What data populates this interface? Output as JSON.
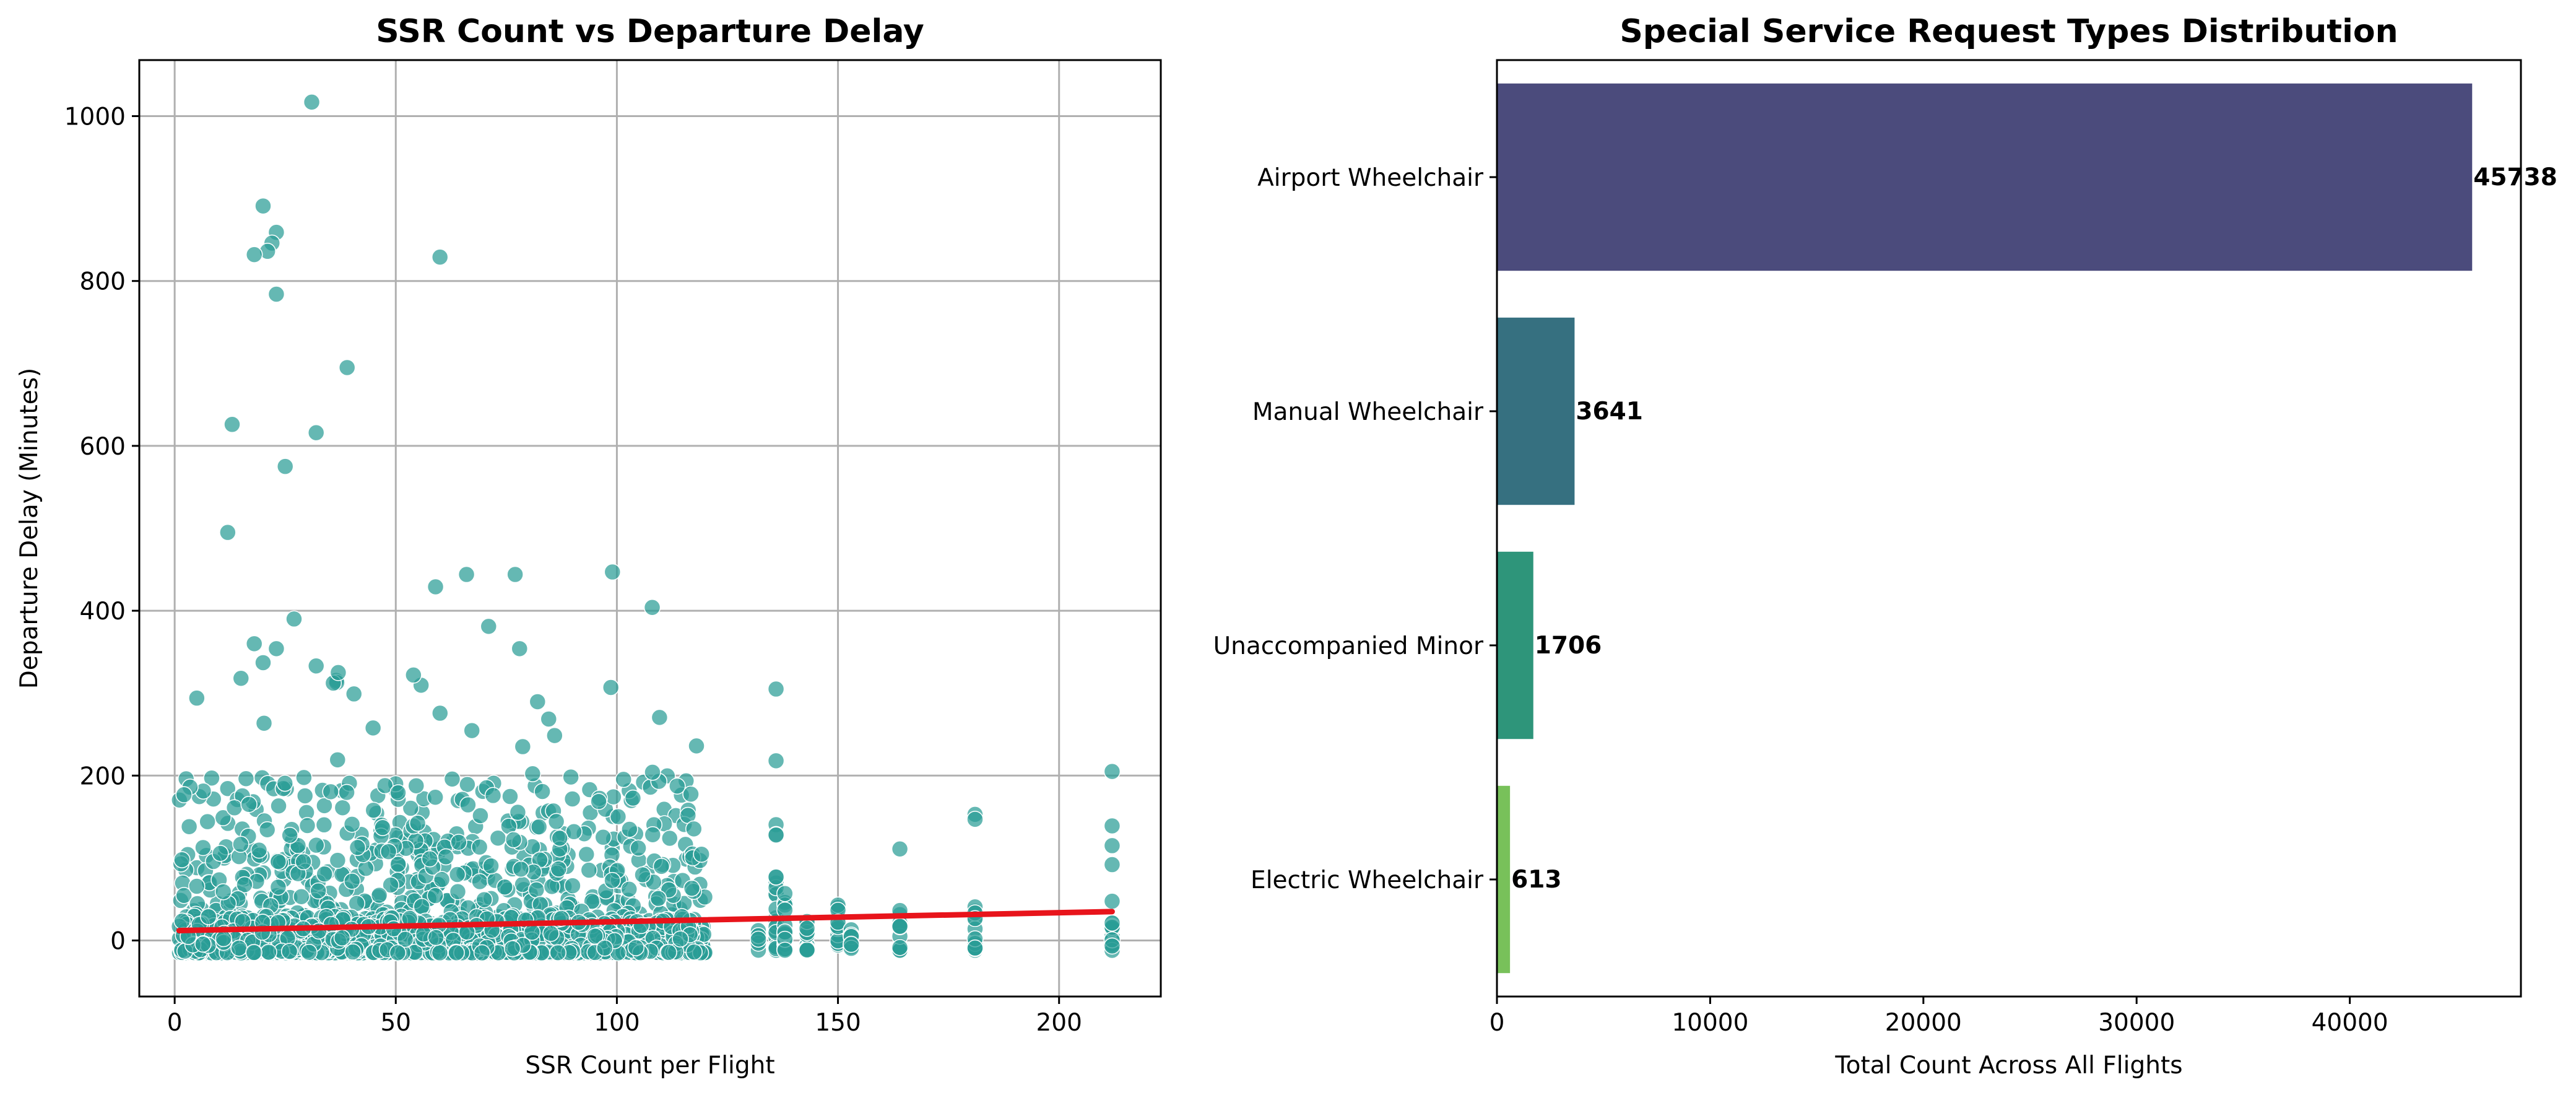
{
  "chart_data": [
    {
      "type": "scatter",
      "title": "SSR Count vs Departure Delay",
      "xlabel": "SSR Count per Flight",
      "ylabel": "Departure Delay (Minutes)",
      "xlim": [
        -8,
        223
      ],
      "ylim": [
        -68,
        1068
      ],
      "xticks": [
        0,
        50,
        100,
        150,
        200
      ],
      "yticks": [
        0,
        200,
        400,
        600,
        800,
        1000
      ],
      "grid": true,
      "point_color": "#2a9d96",
      "point_edge_color": "#ffffff",
      "trend_color": "#e8141b",
      "trend_line": {
        "x": [
          1,
          212
        ],
        "y": [
          12,
          35
        ]
      },
      "outliers": [
        {
          "x": 31,
          "y": 1017
        },
        {
          "x": 20,
          "y": 891
        },
        {
          "x": 23,
          "y": 859
        },
        {
          "x": 22,
          "y": 846
        },
        {
          "x": 21,
          "y": 836
        },
        {
          "x": 18,
          "y": 832
        },
        {
          "x": 60,
          "y": 829
        },
        {
          "x": 23,
          "y": 784
        },
        {
          "x": 39,
          "y": 695
        },
        {
          "x": 13,
          "y": 626
        },
        {
          "x": 32,
          "y": 616
        },
        {
          "x": 25,
          "y": 575
        },
        {
          "x": 12,
          "y": 495
        },
        {
          "x": 99,
          "y": 447
        },
        {
          "x": 66,
          "y": 444
        },
        {
          "x": 77,
          "y": 444
        },
        {
          "x": 59,
          "y": 429
        },
        {
          "x": 108,
          "y": 404
        },
        {
          "x": 27,
          "y": 390
        },
        {
          "x": 71,
          "y": 381
        },
        {
          "x": 18,
          "y": 360
        },
        {
          "x": 23,
          "y": 354
        },
        {
          "x": 78,
          "y": 354
        },
        {
          "x": 20,
          "y": 337
        },
        {
          "x": 32,
          "y": 333
        },
        {
          "x": 37,
          "y": 325
        },
        {
          "x": 15,
          "y": 318
        },
        {
          "x": 54,
          "y": 322
        },
        {
          "x": 136,
          "y": 305
        },
        {
          "x": 5,
          "y": 294
        },
        {
          "x": 212,
          "y": 205
        },
        {
          "x": 181,
          "y": 153
        },
        {
          "x": 181,
          "y": 147
        },
        {
          "x": 164,
          "y": 111
        },
        {
          "x": 136,
          "y": 218
        },
        {
          "x": 118,
          "y": 236
        },
        {
          "x": 212,
          "y": 139
        },
        {
          "x": 212,
          "y": 115
        },
        {
          "x": 212,
          "y": 92
        }
      ],
      "clusters": [
        {
          "x_min": 1,
          "x_max": 120,
          "y_max": 200,
          "n": 900,
          "seed": 3
        },
        {
          "x_min": 8,
          "x_max": 110,
          "y_max": 320,
          "n": 150,
          "seed": 11
        },
        {
          "x_min": 1,
          "x_max": 120,
          "y_max": 30,
          "n": 1200,
          "seed": 17
        }
      ],
      "columns": [
        {
          "x": 132,
          "y_max": 90,
          "n": 10
        },
        {
          "x": 136,
          "y_max": 145,
          "n": 20
        },
        {
          "x": 138,
          "y_max": 60,
          "n": 15
        },
        {
          "x": 143,
          "y_max": 55,
          "n": 12
        },
        {
          "x": 150,
          "y_max": 50,
          "n": 14
        },
        {
          "x": 153,
          "y_max": 40,
          "n": 10
        },
        {
          "x": 164,
          "y_max": 38,
          "n": 12
        },
        {
          "x": 181,
          "y_max": 60,
          "n": 14
        },
        {
          "x": 212,
          "y_max": 65,
          "n": 16
        }
      ]
    },
    {
      "type": "bar",
      "orientation": "horizontal",
      "title": "Special Service Request Types Distribution",
      "xlabel": "Total Count Across All Flights",
      "ylabel": "",
      "categories": [
        "Airport Wheelchair",
        "Manual Wheelchair",
        "Unaccompanied Minor",
        "Electric Wheelchair"
      ],
      "values": [
        45738,
        3641,
        1706,
        613
      ],
      "value_labels": [
        "45738",
        "3641",
        "1706",
        "613"
      ],
      "colors": [
        "#4b4b7c",
        "#367080",
        "#2e957a",
        "#78c15a"
      ],
      "xlim": [
        0,
        48024
      ],
      "xticks": [
        0,
        10000,
        20000,
        30000,
        40000
      ],
      "grid": false
    }
  ]
}
